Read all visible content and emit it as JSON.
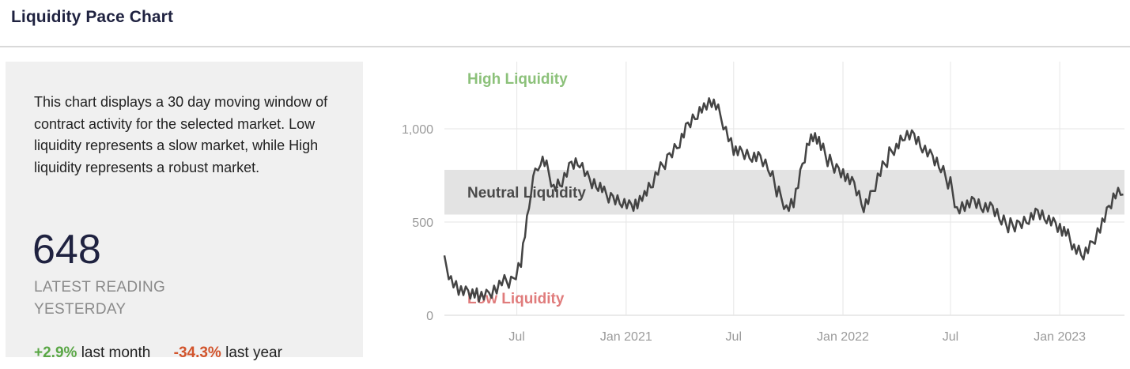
{
  "page": {
    "title": "Liquidity Pace Chart"
  },
  "panel": {
    "description": "This chart displays a 30 day moving window of contract activity for the selected market. Low liquidity represents a slow market, while High liquidity represents a robust market.",
    "latest_value": "648",
    "latest_label_line1": "LATEST READING",
    "latest_label_line2": "YESTERDAY",
    "month_change": "+2.9%",
    "month_label": "last month",
    "year_change": "-34.3%",
    "year_label": "last year"
  },
  "colors": {
    "positive": "#5aa746",
    "negative": "#d2542c",
    "high_zone_label": "#8cc17a",
    "low_zone_label": "#e07c7c",
    "neutral_band": "#e3e3e3",
    "line": "#444444"
  },
  "chart_data": {
    "type": "line",
    "title": "",
    "xlabel": "",
    "ylabel": "",
    "ylim": [
      0,
      1200
    ],
    "y_ticks": [
      0,
      500,
      1000
    ],
    "y_tick_labels": [
      "0",
      "500",
      "1,000"
    ],
    "x_ticks": [
      "2020-07-01",
      "2021-01-01",
      "2021-07-01",
      "2022-01-01",
      "2022-07-01",
      "2023-01-01"
    ],
    "x_tick_labels": [
      "Jul",
      "Jan 2021",
      "Jul",
      "Jan 2022",
      "Jul",
      "Jan 2023"
    ],
    "x_range": [
      "2020-03-01",
      "2023-04-20"
    ],
    "grid": true,
    "neutral_band": {
      "low": 540,
      "high": 780
    },
    "zone_labels": {
      "high": "High Liquidity",
      "neutral": "Neutral Liquidity",
      "low": "Low Liquidity"
    },
    "series": [
      {
        "x": [
          "2020-03-01",
          "2020-03-12",
          "2020-03-25",
          "2020-04-10",
          "2020-04-28",
          "2020-05-15",
          "2020-05-28",
          "2020-06-10",
          "2020-06-25",
          "2020-07-08",
          "2020-07-18",
          "2020-07-25",
          "2020-08-01",
          "2020-08-10",
          "2020-08-20",
          "2020-09-01",
          "2020-09-15",
          "2020-10-01",
          "2020-10-15",
          "2020-11-01",
          "2020-11-15",
          "2020-11-25",
          "2020-12-10",
          "2020-12-25",
          "2021-01-10",
          "2021-01-20",
          "2021-02-01",
          "2021-02-15",
          "2021-02-28",
          "2021-03-15",
          "2021-04-01",
          "2021-04-15",
          "2021-05-01",
          "2021-05-12",
          "2021-05-25",
          "2021-06-05",
          "2021-06-18",
          "2021-07-01",
          "2021-07-15",
          "2021-08-01",
          "2021-08-15",
          "2021-09-01",
          "2021-09-15",
          "2021-09-28",
          "2021-10-10",
          "2021-10-25",
          "2021-11-05",
          "2021-11-15",
          "2021-11-25",
          "2021-12-10",
          "2021-12-25",
          "2022-01-05",
          "2022-01-20",
          "2022-02-05",
          "2022-02-20",
          "2022-03-05",
          "2022-03-20",
          "2022-04-01",
          "2022-04-15",
          "2022-05-01",
          "2022-05-15",
          "2022-06-01",
          "2022-06-15",
          "2022-07-01",
          "2022-07-12",
          "2022-07-25",
          "2022-08-10",
          "2022-08-25",
          "2022-09-10",
          "2022-09-25",
          "2022-10-10",
          "2022-10-25",
          "2022-11-10",
          "2022-11-25",
          "2022-12-10",
          "2022-12-25",
          "2023-01-05",
          "2023-01-15",
          "2023-01-25",
          "2023-02-10",
          "2023-02-25",
          "2023-03-10",
          "2023-03-25",
          "2023-04-05",
          "2023-04-18"
        ],
        "values": [
          280,
          210,
          150,
          120,
          100,
          95,
          130,
          175,
          200,
          300,
          520,
          680,
          760,
          820,
          790,
          700,
          730,
          810,
          820,
          700,
          680,
          650,
          640,
          620,
          580,
          600,
          640,
          700,
          780,
          870,
          940,
          1020,
          1080,
          1110,
          1130,
          1090,
          1010,
          900,
          870,
          850,
          830,
          760,
          650,
          590,
          620,
          800,
          940,
          950,
          900,
          820,
          790,
          760,
          700,
          580,
          640,
          760,
          860,
          920,
          980,
          960,
          900,
          830,
          780,
          700,
          580,
          600,
          610,
          580,
          560,
          500,
          480,
          500,
          530,
          550,
          520,
          470,
          440,
          420,
          380,
          340,
          380,
          470,
          560,
          640,
          648
        ]
      }
    ]
  }
}
